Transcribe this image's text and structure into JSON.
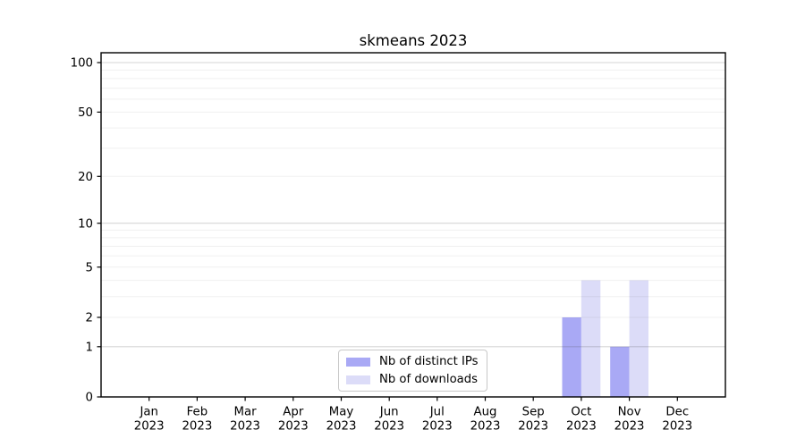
{
  "chart_data": {
    "type": "bar",
    "title": "skmeans 2023",
    "categories": [
      "Jan",
      "Feb",
      "Mar",
      "Apr",
      "May",
      "Jun",
      "Jul",
      "Aug",
      "Sep",
      "Oct",
      "Nov",
      "Dec"
    ],
    "category_year": "2023",
    "series": [
      {
        "name": "Nb of distinct IPs",
        "color": "#a9a9f5",
        "values": [
          0,
          0,
          0,
          0,
          0,
          0,
          0,
          0,
          0,
          2,
          1,
          0
        ]
      },
      {
        "name": "Nb of downloads",
        "color": "#dcdcf8",
        "values": [
          0,
          0,
          0,
          0,
          0,
          0,
          0,
          0,
          0,
          4,
          4,
          0
        ]
      }
    ],
    "xlabel": "",
    "ylabel": "",
    "y_axis": {
      "scale": "log1p",
      "tick_values": [
        0,
        1,
        2,
        5,
        10,
        20,
        50,
        100
      ],
      "tick_labels": [
        "0",
        "1",
        "2",
        "5",
        "10",
        "20",
        "50",
        "100"
      ],
      "major_gridlines": [
        1,
        10,
        100
      ],
      "minor_gridlines": [
        2,
        3,
        4,
        5,
        6,
        7,
        8,
        9,
        20,
        30,
        40,
        50,
        60,
        70,
        80,
        90
      ],
      "max_value": 115
    },
    "grid": true,
    "legend_position": "lower center inside",
    "colors": {
      "grid_major": "rgba(70,70,70,0.22)",
      "grid_minor": "rgba(70,70,70,0.08)",
      "spine": "#000000",
      "tick": "#000000",
      "text": "#000000",
      "background": "#ffffff",
      "legend_border": "#c8c8c8"
    }
  }
}
